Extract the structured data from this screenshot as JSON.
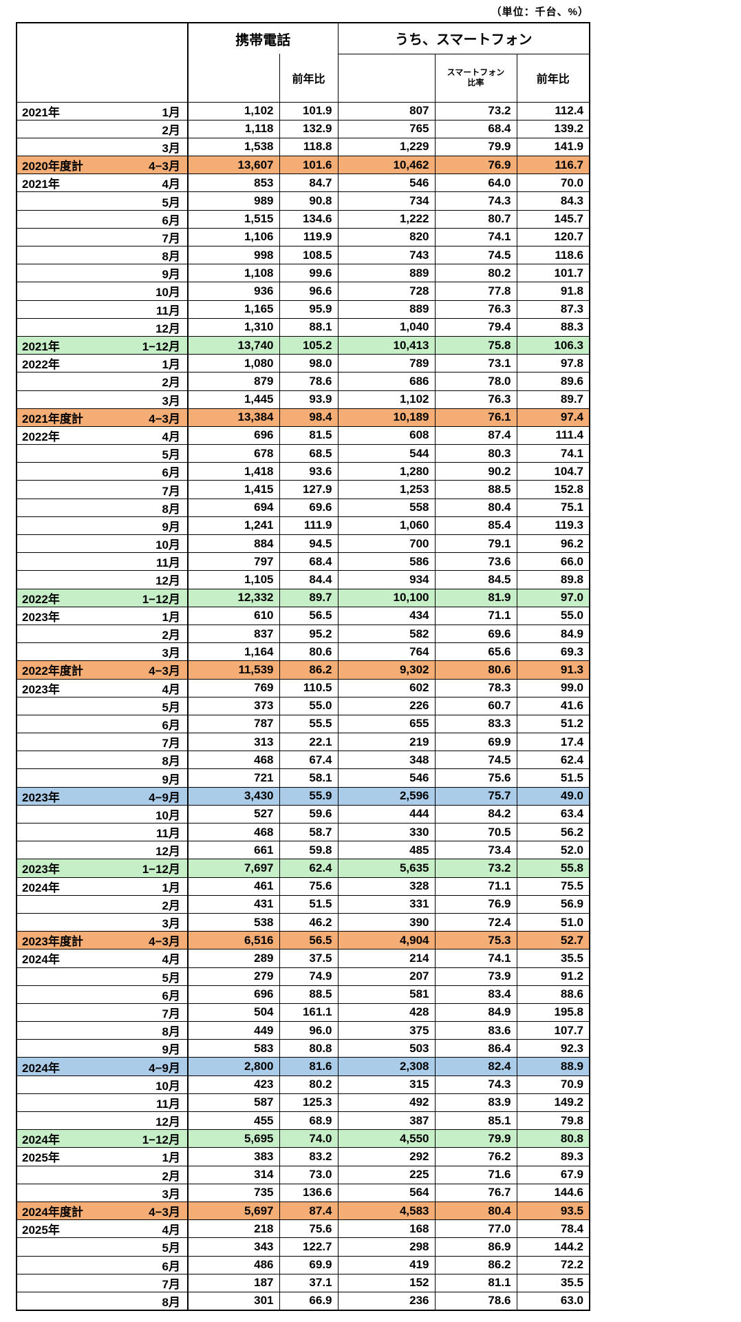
{
  "chart_data": {
    "type": "table",
    "unit_note": "（単位：千台、%）",
    "header": {
      "groups": [
        {
          "label": "携帯電話",
          "span": 2
        },
        {
          "label": "うち、スマートフォン",
          "span": 3
        }
      ],
      "sub_headers": [
        "",
        "前年比",
        "",
        "スマートフォン比率",
        "前年比"
      ]
    },
    "colors": {
      "fiscal_year_total_row": "#F4AD74",
      "calendar_year_total_row": "#C6EFC8",
      "half_year_total_row": "#AACCE8",
      "grid": "#000000",
      "background": "#FFFFFF"
    },
    "rows": [
      {
        "year": "2021年",
        "period": "1月",
        "type": "month",
        "values": [
          "1,102",
          "101.9",
          "807",
          "73.2",
          "112.4"
        ]
      },
      {
        "year": "",
        "period": "2月",
        "type": "month",
        "values": [
          "1,118",
          "132.9",
          "765",
          "68.4",
          "139.2"
        ]
      },
      {
        "year": "",
        "period": "3月",
        "type": "month",
        "values": [
          "1,538",
          "118.8",
          "1,229",
          "79.9",
          "141.9"
        ]
      },
      {
        "year": "2020年度計",
        "period": "4−3月",
        "type": "fiscal_total",
        "values": [
          "13,607",
          "101.6",
          "10,462",
          "76.9",
          "116.7"
        ]
      },
      {
        "year": "2021年",
        "period": "4月",
        "type": "month",
        "values": [
          "853",
          "84.7",
          "546",
          "64.0",
          "70.0"
        ]
      },
      {
        "year": "",
        "period": "5月",
        "type": "month",
        "values": [
          "989",
          "90.8",
          "734",
          "74.3",
          "84.3"
        ]
      },
      {
        "year": "",
        "period": "6月",
        "type": "month",
        "values": [
          "1,515",
          "134.6",
          "1,222",
          "80.7",
          "145.7"
        ]
      },
      {
        "year": "",
        "period": "7月",
        "type": "month",
        "values": [
          "1,106",
          "119.9",
          "820",
          "74.1",
          "120.7"
        ]
      },
      {
        "year": "",
        "period": "8月",
        "type": "month",
        "values": [
          "998",
          "108.5",
          "743",
          "74.5",
          "118.6"
        ]
      },
      {
        "year": "",
        "period": "9月",
        "type": "month",
        "values": [
          "1,108",
          "99.6",
          "889",
          "80.2",
          "101.7"
        ]
      },
      {
        "year": "",
        "period": "10月",
        "type": "month",
        "values": [
          "936",
          "96.6",
          "728",
          "77.8",
          "91.8"
        ]
      },
      {
        "year": "",
        "period": "11月",
        "type": "month",
        "values": [
          "1,165",
          "95.9",
          "889",
          "76.3",
          "87.3"
        ]
      },
      {
        "year": "",
        "period": "12月",
        "type": "month",
        "values": [
          "1,310",
          "88.1",
          "1,040",
          "79.4",
          "88.3"
        ]
      },
      {
        "year": "2021年",
        "period": "1−12月",
        "type": "calendar_total",
        "values": [
          "13,740",
          "105.2",
          "10,413",
          "75.8",
          "106.3"
        ]
      },
      {
        "year": "2022年",
        "period": "1月",
        "type": "month",
        "values": [
          "1,080",
          "98.0",
          "789",
          "73.1",
          "97.8"
        ]
      },
      {
        "year": "",
        "period": "2月",
        "type": "month",
        "values": [
          "879",
          "78.6",
          "686",
          "78.0",
          "89.6"
        ]
      },
      {
        "year": "",
        "period": "3月",
        "type": "month",
        "values": [
          "1,445",
          "93.9",
          "1,102",
          "76.3",
          "89.7"
        ]
      },
      {
        "year": "2021年度計",
        "period": "4−3月",
        "type": "fiscal_total",
        "values": [
          "13,384",
          "98.4",
          "10,189",
          "76.1",
          "97.4"
        ]
      },
      {
        "year": "2022年",
        "period": "4月",
        "type": "month",
        "values": [
          "696",
          "81.5",
          "608",
          "87.4",
          "111.4"
        ]
      },
      {
        "year": "",
        "period": "5月",
        "type": "month",
        "values": [
          "678",
          "68.5",
          "544",
          "80.3",
          "74.1"
        ]
      },
      {
        "year": "",
        "period": "6月",
        "type": "month",
        "values": [
          "1,418",
          "93.6",
          "1,280",
          "90.2",
          "104.7"
        ]
      },
      {
        "year": "",
        "period": "7月",
        "type": "month",
        "values": [
          "1,415",
          "127.9",
          "1,253",
          "88.5",
          "152.8"
        ]
      },
      {
        "year": "",
        "period": "8月",
        "type": "month",
        "values": [
          "694",
          "69.6",
          "558",
          "80.4",
          "75.1"
        ]
      },
      {
        "year": "",
        "period": "9月",
        "type": "month",
        "values": [
          "1,241",
          "111.9",
          "1,060",
          "85.4",
          "119.3"
        ]
      },
      {
        "year": "",
        "period": "10月",
        "type": "month",
        "values": [
          "884",
          "94.5",
          "700",
          "79.1",
          "96.2"
        ]
      },
      {
        "year": "",
        "period": "11月",
        "type": "month",
        "values": [
          "797",
          "68.4",
          "586",
          "73.6",
          "66.0"
        ]
      },
      {
        "year": "",
        "period": "12月",
        "type": "month",
        "values": [
          "1,105",
          "84.4",
          "934",
          "84.5",
          "89.8"
        ]
      },
      {
        "year": "2022年",
        "period": "1−12月",
        "type": "calendar_total",
        "values": [
          "12,332",
          "89.7",
          "10,100",
          "81.9",
          "97.0"
        ]
      },
      {
        "year": "2023年",
        "period": "1月",
        "type": "month",
        "values": [
          "610",
          "56.5",
          "434",
          "71.1",
          "55.0"
        ]
      },
      {
        "year": "",
        "period": "2月",
        "type": "month",
        "values": [
          "837",
          "95.2",
          "582",
          "69.6",
          "84.9"
        ]
      },
      {
        "year": "",
        "period": "3月",
        "type": "month",
        "values": [
          "1,164",
          "80.6",
          "764",
          "65.6",
          "69.3"
        ]
      },
      {
        "year": "2022年度計",
        "period": "4−3月",
        "type": "fiscal_total",
        "values": [
          "11,539",
          "86.2",
          "9,302",
          "80.6",
          "91.3"
        ]
      },
      {
        "year": "2023年",
        "period": "4月",
        "type": "month",
        "values": [
          "769",
          "110.5",
          "602",
          "78.3",
          "99.0"
        ]
      },
      {
        "year": "",
        "period": "5月",
        "type": "month",
        "values": [
          "373",
          "55.0",
          "226",
          "60.7",
          "41.6"
        ]
      },
      {
        "year": "",
        "period": "6月",
        "type": "month",
        "values": [
          "787",
          "55.5",
          "655",
          "83.3",
          "51.2"
        ]
      },
      {
        "year": "",
        "period": "7月",
        "type": "month",
        "values": [
          "313",
          "22.1",
          "219",
          "69.9",
          "17.4"
        ]
      },
      {
        "year": "",
        "period": "8月",
        "type": "month",
        "values": [
          "468",
          "67.4",
          "348",
          "74.5",
          "62.4"
        ]
      },
      {
        "year": "",
        "period": "9月",
        "type": "month",
        "values": [
          "721",
          "58.1",
          "546",
          "75.6",
          "51.5"
        ]
      },
      {
        "year": "2023年",
        "period": "4−9月",
        "type": "half_total",
        "values": [
          "3,430",
          "55.9",
          "2,596",
          "75.7",
          "49.0"
        ]
      },
      {
        "year": "",
        "period": "10月",
        "type": "month",
        "values": [
          "527",
          "59.6",
          "444",
          "84.2",
          "63.4"
        ]
      },
      {
        "year": "",
        "period": "11月",
        "type": "month",
        "values": [
          "468",
          "58.7",
          "330",
          "70.5",
          "56.2"
        ]
      },
      {
        "year": "",
        "period": "12月",
        "type": "month",
        "values": [
          "661",
          "59.8",
          "485",
          "73.4",
          "52.0"
        ]
      },
      {
        "year": "2023年",
        "period": "1−12月",
        "type": "calendar_total",
        "values": [
          "7,697",
          "62.4",
          "5,635",
          "73.2",
          "55.8"
        ]
      },
      {
        "year": "2024年",
        "period": "1月",
        "type": "month",
        "values": [
          "461",
          "75.6",
          "328",
          "71.1",
          "75.5"
        ]
      },
      {
        "year": "",
        "period": "2月",
        "type": "month",
        "values": [
          "431",
          "51.5",
          "331",
          "76.9",
          "56.9"
        ]
      },
      {
        "year": "",
        "period": "3月",
        "type": "month",
        "values": [
          "538",
          "46.2",
          "390",
          "72.4",
          "51.0"
        ]
      },
      {
        "year": "2023年度計",
        "period": "4−3月",
        "type": "fiscal_total",
        "values": [
          "6,516",
          "56.5",
          "4,904",
          "75.3",
          "52.7"
        ]
      },
      {
        "year": "2024年",
        "period": "4月",
        "type": "month",
        "values": [
          "289",
          "37.5",
          "214",
          "74.1",
          "35.5"
        ]
      },
      {
        "year": "",
        "period": "5月",
        "type": "month",
        "values": [
          "279",
          "74.9",
          "207",
          "73.9",
          "91.2"
        ]
      },
      {
        "year": "",
        "period": "6月",
        "type": "month",
        "values": [
          "696",
          "88.5",
          "581",
          "83.4",
          "88.6"
        ]
      },
      {
        "year": "",
        "period": "7月",
        "type": "month",
        "values": [
          "504",
          "161.1",
          "428",
          "84.9",
          "195.8"
        ]
      },
      {
        "year": "",
        "period": "8月",
        "type": "month",
        "values": [
          "449",
          "96.0",
          "375",
          "83.6",
          "107.7"
        ]
      },
      {
        "year": "",
        "period": "9月",
        "type": "month",
        "values": [
          "583",
          "80.8",
          "503",
          "86.4",
          "92.3"
        ]
      },
      {
        "year": "2024年",
        "period": "4−9月",
        "type": "half_total",
        "values": [
          "2,800",
          "81.6",
          "2,308",
          "82.4",
          "88.9"
        ]
      },
      {
        "year": "",
        "period": "10月",
        "type": "month",
        "values": [
          "423",
          "80.2",
          "315",
          "74.3",
          "70.9"
        ]
      },
      {
        "year": "",
        "period": "11月",
        "type": "month",
        "values": [
          "587",
          "125.3",
          "492",
          "83.9",
          "149.2"
        ]
      },
      {
        "year": "",
        "period": "12月",
        "type": "month",
        "values": [
          "455",
          "68.9",
          "387",
          "85.1",
          "79.8"
        ]
      },
      {
        "year": "2024年",
        "period": "1−12月",
        "type": "calendar_total",
        "values": [
          "5,695",
          "74.0",
          "4,550",
          "79.9",
          "80.8"
        ]
      },
      {
        "year": "2025年",
        "period": "1月",
        "type": "month",
        "values": [
          "383",
          "83.2",
          "292",
          "76.2",
          "89.3"
        ]
      },
      {
        "year": "",
        "period": "2月",
        "type": "month",
        "values": [
          "314",
          "73.0",
          "225",
          "71.6",
          "67.9"
        ]
      },
      {
        "year": "",
        "period": "3月",
        "type": "month",
        "values": [
          "735",
          "136.6",
          "564",
          "76.7",
          "144.6"
        ]
      },
      {
        "year": "2024年度計",
        "period": "4−3月",
        "type": "fiscal_total",
        "values": [
          "5,697",
          "87.4",
          "4,583",
          "80.4",
          "93.5"
        ]
      },
      {
        "year": "2025年",
        "period": "4月",
        "type": "month",
        "values": [
          "218",
          "75.6",
          "168",
          "77.0",
          "78.4"
        ]
      },
      {
        "year": "",
        "period": "5月",
        "type": "month",
        "values": [
          "343",
          "122.7",
          "298",
          "86.9",
          "144.2"
        ]
      },
      {
        "year": "",
        "period": "6月",
        "type": "month",
        "values": [
          "486",
          "69.9",
          "419",
          "86.2",
          "72.2"
        ]
      },
      {
        "year": "",
        "period": "7月",
        "type": "month",
        "values": [
          "187",
          "37.1",
          "152",
          "81.1",
          "35.5"
        ]
      },
      {
        "year": "",
        "period": "8月",
        "type": "month",
        "values": [
          "301",
          "66.9",
          "236",
          "78.6",
          "63.0"
        ]
      }
    ]
  }
}
